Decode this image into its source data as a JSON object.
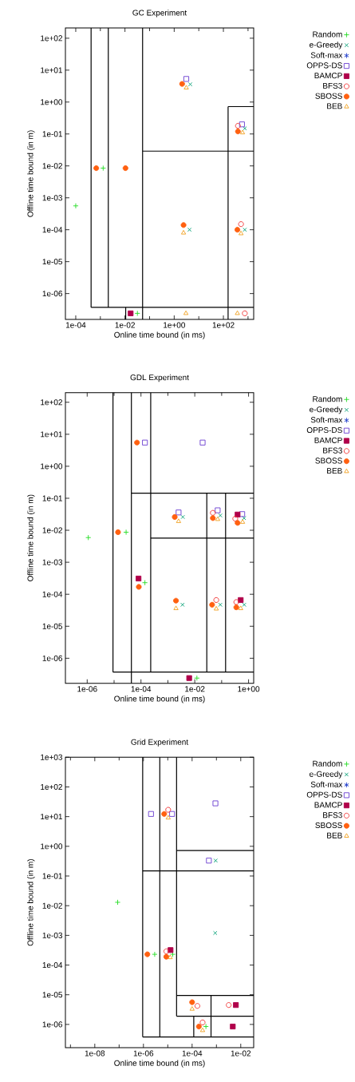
{
  "chart_data": [
    {
      "type": "scatter",
      "title": "GC Experiment",
      "xlabel": "Online time bound (in ms)",
      "ylabel": "Offline time bound (in m)",
      "log": "xy",
      "legend": "top right",
      "xlim": [
        3.8e-05,
        1700
      ],
      "ylim": [
        1.55e-07,
        210
      ],
      "xticks": [
        {
          "value": 0.0001,
          "label": "1e-04"
        },
        {
          "value": 0.001,
          "label": null
        },
        {
          "value": 0.01,
          "label": "1e-02"
        },
        {
          "value": 0.1,
          "label": null
        },
        {
          "value": 1,
          "label": "1e+00"
        },
        {
          "value": 10,
          "label": null
        },
        {
          "value": 100,
          "label": "1e+02"
        },
        {
          "value": 1000,
          "label": null
        }
      ],
      "yticks": [
        {
          "value": 100,
          "label": "1e+02"
        },
        {
          "value": 10,
          "label": "1e+01"
        },
        {
          "value": 1,
          "label": "1e+00"
        },
        {
          "value": 0.1,
          "label": "1e-01"
        },
        {
          "value": 0.01,
          "label": "1e-02"
        },
        {
          "value": 0.001,
          "label": "1e-03"
        },
        {
          "value": 0.0001,
          "label": "1e-04"
        },
        {
          "value": 1e-05,
          "label": "1e-05"
        },
        {
          "value": 1e-06,
          "label": "1e-06"
        }
      ],
      "series": [
        {
          "type": "line",
          "color": "#000000",
          "x": [
            0.00042,
            0.00042
          ],
          "values": [
            210,
            3.7e-07
          ]
        },
        {
          "type": "line",
          "color": "#000000",
          "x": [
            0.00042,
            1700
          ],
          "values": [
            3.7e-07,
            3.7e-07
          ]
        },
        {
          "type": "line",
          "color": "#000000",
          "x": [
            0.0021,
            0.0021
          ],
          "values": [
            210,
            3.7e-07
          ]
        },
        {
          "type": "line",
          "color": "#000000",
          "x": [
            0.052,
            0.052
          ],
          "values": [
            210,
            1.55e-07
          ]
        },
        {
          "type": "line",
          "color": "#000000",
          "x": [
            0.052,
            1700
          ],
          "values": [
            0.029,
            0.029
          ]
        },
        {
          "type": "line",
          "color": "#000000",
          "x": [
            155,
            1700
          ],
          "values": [
            0.72,
            0.72
          ]
        },
        {
          "type": "line",
          "color": "#000000",
          "x": [
            155,
            155
          ],
          "values": [
            0.72,
            1.55e-07
          ]
        },
        {
          "type": "line",
          "color": "#000000",
          "x": [
            0.0107,
            0.0107
          ],
          "values": [
            3.7e-07,
            1.55e-07
          ]
        },
        {
          "name": "Random",
          "color": "#22dd22",
          "marker": "plus",
          "x": [
            0.0013,
            0.0001,
            0.032
          ],
          "values": [
            0.0085,
            0.00056,
            2.4e-07
          ]
        },
        {
          "name": "e-Greedy",
          "color": "#009e73",
          "marker": "cross",
          "x": [
            4.5,
            740,
            4.2,
            740
          ],
          "values": [
            3.6,
            0.15,
            0.0001,
            0.0001
          ]
        },
        {
          "name": "Soft-max",
          "color": "#1e3ccc",
          "marker": "star"
        },
        {
          "name": "OPPS-DS",
          "color": "#6a3dd0",
          "marker": "square-open",
          "x": [
            3.1,
            570
          ],
          "values": [
            5.3,
            0.2
          ]
        },
        {
          "name": "BAMCP",
          "color": "#b0004a",
          "marker": "square",
          "x": [
            0.017
          ],
          "values": [
            2.4e-07
          ]
        },
        {
          "name": "BFS3",
          "color": "#f03030",
          "marker": "circle-open",
          "x": [
            390,
            520,
            740
          ],
          "values": [
            0.18,
            0.00015,
            2.4e-07
          ]
        },
        {
          "name": "SBOSS",
          "color": "#ff6010",
          "marker": "circle",
          "x": [
            0.00068,
            0.0105,
            2.1,
            390,
            2.4,
            370
          ],
          "values": [
            0.0085,
            0.0085,
            3.7,
            0.12,
            0.00014,
            0.0001
          ]
        },
        {
          "name": "BEB",
          "color": "#f0a020",
          "marker": "triangle-open",
          "x": [
            3.1,
            600,
            2.4,
            520,
            3.0,
            370
          ],
          "values": [
            2.8,
            0.11,
            8e-05,
            7.6e-05,
            2.4e-07,
            2.4e-07
          ]
        }
      ]
    },
    {
      "type": "scatter",
      "title": "GDL Experiment",
      "xlabel": "Online time bound (in ms)",
      "ylabel": "Offline time bound (in m)",
      "log": "xy",
      "legend": "top right",
      "xlim": [
        1.55e-07,
        1.55
      ],
      "ylim": [
        1.65e-07,
        200
      ],
      "xticks": [
        {
          "value": 1e-06,
          "label": "1e-06"
        },
        {
          "value": 1e-05,
          "label": null
        },
        {
          "value": 0.0001,
          "label": "1e-04"
        },
        {
          "value": 0.001,
          "label": null
        },
        {
          "value": 0.01,
          "label": "1e-02"
        },
        {
          "value": 0.1,
          "label": null
        },
        {
          "value": 1,
          "label": "1e+00"
        }
      ],
      "yticks": [
        {
          "value": 100,
          "label": "1e+02"
        },
        {
          "value": 10,
          "label": "1e+01"
        },
        {
          "value": 1,
          "label": "1e+00"
        },
        {
          "value": 0.1,
          "label": "1e-01"
        },
        {
          "value": 0.01,
          "label": "1e-02"
        },
        {
          "value": 0.001,
          "label": "1e-03"
        },
        {
          "value": 0.0001,
          "label": "1e-04"
        },
        {
          "value": 1e-05,
          "label": "1e-05"
        },
        {
          "value": 1e-06,
          "label": "1e-06"
        }
      ],
      "series": [
        {
          "type": "line",
          "color": "#000000",
          "x": [
            9.1e-06,
            9.1e-06
          ],
          "values": [
            200,
            3.7e-07
          ]
        },
        {
          "type": "line",
          "color": "#000000",
          "x": [
            9.1e-06,
            1.55
          ],
          "values": [
            3.7e-07,
            3.7e-07
          ]
        },
        {
          "type": "line",
          "color": "#000000",
          "x": [
            4.4e-05,
            4.4e-05
          ],
          "values": [
            200,
            1.65e-07
          ]
        },
        {
          "type": "line",
          "color": "#000000",
          "x": [
            0.00023,
            0.00023
          ],
          "values": [
            200,
            3.7e-07
          ]
        },
        {
          "type": "line",
          "color": "#000000",
          "x": [
            4.4e-05,
            1.55
          ],
          "values": [
            0.144,
            0.144
          ]
        },
        {
          "type": "line",
          "color": "#000000",
          "x": [
            0.00023,
            1.55
          ],
          "values": [
            0.0057,
            0.0057
          ]
        },
        {
          "type": "line",
          "color": "#000000",
          "x": [
            0.028,
            0.028
          ],
          "values": [
            0.144,
            3.7e-07
          ]
        },
        {
          "type": "line",
          "color": "#000000",
          "x": [
            0.14,
            0.14
          ],
          "values": [
            0.144,
            3.7e-07
          ]
        },
        {
          "name": "Random",
          "color": "#22dd22",
          "marker": "plus",
          "x": [
            1.1e-06,
            2.8e-05,
            0.00014,
            0.012
          ],
          "values": [
            0.0059,
            0.0087,
            0.00023,
            2.4e-07
          ]
        },
        {
          "name": "e-Greedy",
          "color": "#009e73",
          "marker": "cross",
          "x": [
            0.0036,
            0.089,
            0.68,
            0.0035,
            0.089,
            0.69
          ],
          "values": [
            0.026,
            0.029,
            0.024,
            4.7e-05,
            4.7e-05,
            4.7e-05
          ]
        },
        {
          "name": "Soft-max",
          "color": "#1e3ccc",
          "marker": "star"
        },
        {
          "name": "OPPS-DS",
          "color": "#6a3dd0",
          "marker": "square-open",
          "x": [
            0.00014,
            0.0196,
            0.0025,
            0.071,
            0.58
          ],
          "values": [
            5.5,
            5.5,
            0.036,
            0.042,
            0.032
          ]
        },
        {
          "name": "BAMCP",
          "color": "#b0004a",
          "marker": "square",
          "x": [
            0.39,
            8.1e-05,
            0.51,
            0.0062
          ],
          "values": [
            0.031,
            0.00031,
            6.6e-05,
            2.4e-07
          ]
        },
        {
          "name": "BFS3",
          "color": "#f03030",
          "marker": "circle-open",
          "x": [
            0.047,
            0.32,
            0.063,
            0.35
          ],
          "values": [
            0.035,
            0.023,
            6.6e-05,
            5.7e-05
          ]
        },
        {
          "name": "SBOSS",
          "color": "#ff6010",
          "marker": "circle",
          "x": [
            1.4e-05,
            7.1e-05,
            0.0018,
            0.047,
            0.39,
            8.3e-05,
            0.002,
            0.044,
            0.35
          ],
          "values": [
            0.0087,
            5.5,
            0.026,
            0.024,
            0.017,
            0.00017,
            6.3e-05,
            4.7e-05,
            3.9e-05
          ]
        },
        {
          "name": "BEB",
          "color": "#f0a020",
          "marker": "triangle-open",
          "x": [
            0.0025,
            0.071,
            0.6,
            0.002,
            0.063,
            0.51
          ],
          "values": [
            0.019,
            0.022,
            0.018,
            3.6e-05,
            3.5e-05,
            3.6e-05
          ]
        }
      ]
    },
    {
      "type": "scatter",
      "title": "Grid Experiment",
      "xlabel": "Online time bound (in ms)",
      "ylabel": "Offline time bound (in m)",
      "log": "xy",
      "legend": "top right",
      "xlim": [
        6.2e-10,
        0.034
      ],
      "ylim": [
        1.65e-07,
        1000
      ],
      "xticks": [
        {
          "value": 1e-09,
          "label": null
        },
        {
          "value": 1e-08,
          "label": "1e-08"
        },
        {
          "value": 1e-07,
          "label": null
        },
        {
          "value": 1e-06,
          "label": "1e-06"
        },
        {
          "value": 1e-05,
          "label": null
        },
        {
          "value": 0.0001,
          "label": "1e-04"
        },
        {
          "value": 0.001,
          "label": null
        },
        {
          "value": 0.01,
          "label": "1e-02"
        }
      ],
      "yticks": [
        {
          "value": 1000,
          "label": "1e+03"
        },
        {
          "value": 100,
          "label": "1e+02"
        },
        {
          "value": 10,
          "label": "1e+01"
        },
        {
          "value": 1,
          "label": "1e+00"
        },
        {
          "value": 0.1,
          "label": "1e-01"
        },
        {
          "value": 0.01,
          "label": "1e-02"
        },
        {
          "value": 0.001,
          "label": "1e-03"
        },
        {
          "value": 0.0001,
          "label": "1e-04"
        },
        {
          "value": 1e-05,
          "label": "1e-05"
        },
        {
          "value": 1e-06,
          "label": "1e-06"
        }
      ],
      "series": [
        {
          "type": "line",
          "color": "#000000",
          "x": [
            9.3e-07,
            9.3e-07
          ],
          "values": [
            1000,
            3.8e-07
          ]
        },
        {
          "type": "line",
          "color": "#000000",
          "x": [
            9.3e-07,
            0.034
          ],
          "values": [
            3.8e-07,
            3.8e-07
          ]
        },
        {
          "type": "line",
          "color": "#000000",
          "x": [
            4.7e-06,
            4.7e-06
          ],
          "values": [
            1000,
            3.8e-07
          ]
        },
        {
          "type": "line",
          "color": "#000000",
          "x": [
            2.3e-05,
            2.3e-05
          ],
          "values": [
            1000,
            1.9e-06
          ]
        },
        {
          "type": "line",
          "color": "#000000",
          "x": [
            2.3e-05,
            0.034
          ],
          "values": [
            1.9e-06,
            1.9e-06
          ]
        },
        {
          "type": "line",
          "color": "#000000",
          "x": [
            9.3e-07,
            0.034
          ],
          "values": [
            0.148,
            0.148
          ]
        },
        {
          "type": "line",
          "color": "#000000",
          "x": [
            2.3e-05,
            0.034
          ],
          "values": [
            0.72,
            0.72
          ]
        },
        {
          "type": "line",
          "color": "#000000",
          "x": [
            2.3e-05,
            0.034
          ],
          "values": [
            9.5e-06,
            9.5e-06
          ]
        },
        {
          "type": "line",
          "color": "#000000",
          "x": [
            0.000117,
            0.000117
          ],
          "values": [
            1.9e-06,
            3.8e-07
          ]
        },
        {
          "type": "line",
          "color": "#000000",
          "x": [
            0.0006,
            0.0006
          ],
          "values": [
            9.5e-06,
            3.8e-07
          ]
        },
        {
          "name": "Random",
          "color": "#22dd22",
          "marker": "plus",
          "x": [
            8.7e-08,
            2.9e-06,
            1.6e-05,
            0.00037
          ],
          "values": [
            0.013,
            0.00023,
            0.00023,
            8.5e-07
          ]
        },
        {
          "name": "e-Greedy",
          "color": "#009e73",
          "marker": "cross",
          "x": [
            0.00093,
            0.00089
          ],
          "values": [
            0.33,
            0.0012
          ]
        },
        {
          "name": "Soft-max",
          "color": "#1e3ccc",
          "marker": "star"
        },
        {
          "name": "OPPS-DS",
          "color": "#6a3dd0",
          "marker": "square-open",
          "x": [
            2.05e-06,
            1.5e-05,
            0.00091,
            0.00049
          ],
          "values": [
            12.3,
            12.3,
            28,
            0.33
          ]
        },
        {
          "name": "BAMCP",
          "color": "#b0004a",
          "marker": "square",
          "x": [
            1.3e-05,
            0.0063,
            0.0047
          ],
          "values": [
            0.00032,
            4.5e-06,
            8.5e-07
          ]
        },
        {
          "name": "BFS3",
          "color": "#f03030",
          "marker": "circle-open",
          "x": [
            1.04e-05,
            8.7e-06,
            0.000165,
            0.0032,
            0.00027
          ],
          "values": [
            17,
            0.00029,
            4.2e-06,
            4.5e-06,
            1.17e-06
          ]
        },
        {
          "name": "SBOSS",
          "color": "#ff6010",
          "marker": "circle",
          "x": [
            7.1e-06,
            1.45e-06,
            8.7e-06,
            0.0001,
            0.00019
          ],
          "values": [
            12.3,
            0.00023,
            0.00019,
            5.6e-06,
            8.5e-07
          ]
        },
        {
          "name": "BEB",
          "color": "#f0a020",
          "marker": "triangle-open",
          "x": [
            1.04e-05,
            1.26e-05,
            0.0001,
            0.00027
          ],
          "values": [
            9.1,
            0.00018,
            3.3e-06,
            6.3e-07
          ]
        }
      ]
    }
  ]
}
